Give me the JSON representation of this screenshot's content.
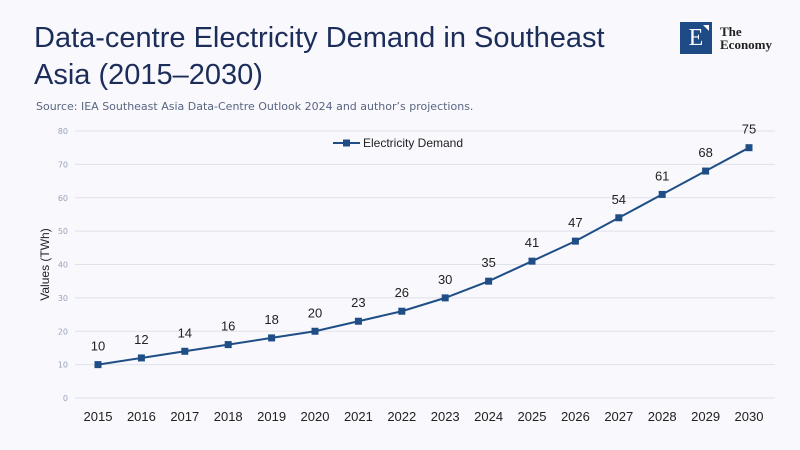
{
  "chart_data": {
    "type": "line",
    "title": "Data-centre Electricity Demand in Southeast Asia (2015–2030)",
    "subtitle": "Source: IEA Southeast Asia Data-Centre Outlook 2024 and author’s projections.",
    "xlabel": "",
    "ylabel": "Values (TWh)",
    "x": [
      "2015",
      "2016",
      "2017",
      "2018",
      "2019",
      "2020",
      "2021",
      "2022",
      "2023",
      "2024",
      "2025",
      "2026",
      "2027",
      "2028",
      "2029",
      "2030"
    ],
    "series": [
      {
        "name": "Electricity Demand",
        "values": [
          10,
          12,
          14,
          16,
          18,
          20,
          23,
          26,
          30,
          35,
          41,
          47,
          54,
          61,
          68,
          75
        ],
        "color": "#1f4e86"
      }
    ],
    "ylim": [
      0,
      80
    ],
    "yticks": [
      0,
      10,
      20,
      30,
      40,
      50,
      60,
      70,
      80
    ],
    "grid": true,
    "legend": "top-center"
  },
  "logo": {
    "mark": "E",
    "line1": "The",
    "line2": "Economy",
    "color": "#1e4a85"
  }
}
